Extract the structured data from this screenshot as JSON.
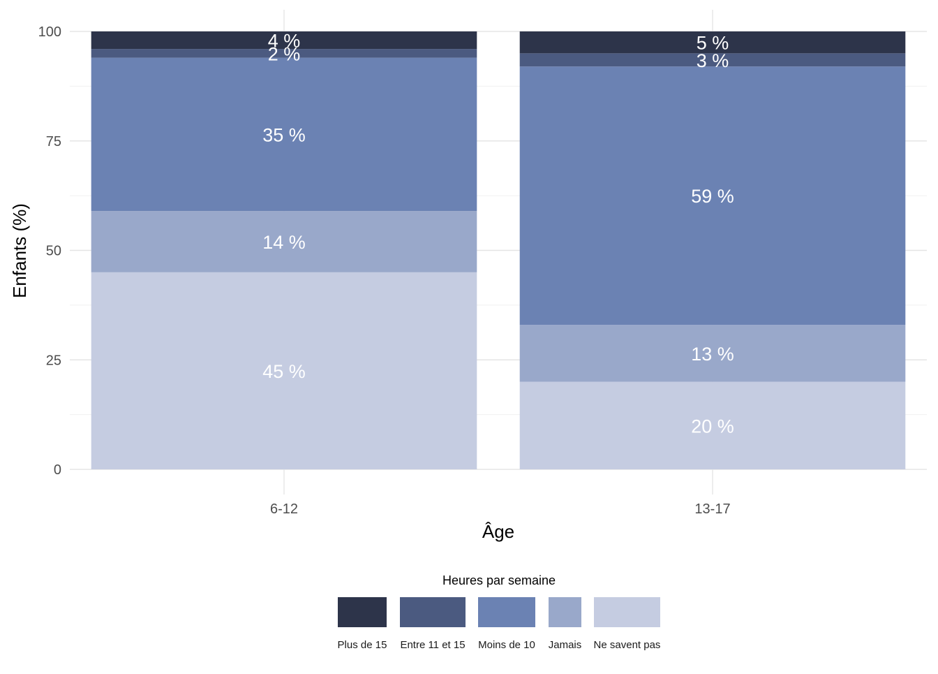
{
  "chart_data": {
    "type": "bar",
    "stacked": true,
    "xlabel": "Âge",
    "ylabel": "Enfants (%)",
    "ylim": [
      0,
      100
    ],
    "yticks": [
      0,
      25,
      50,
      75,
      100
    ],
    "categories": [
      "6-12",
      "13-17"
    ],
    "legend_title": "Heures par semaine",
    "legend_position": "bottom",
    "grid": true,
    "series": [
      {
        "name": "Ne savent pas",
        "color": "#c5cce1",
        "values": [
          45,
          20
        ],
        "labels": [
          "45 %",
          "20 %"
        ]
      },
      {
        "name": "Jamais",
        "color": "#99a8ca",
        "values": [
          14,
          13
        ],
        "labels": [
          "14 %",
          "13 %"
        ]
      },
      {
        "name": "Moins de 10",
        "color": "#6b82b3",
        "values": [
          35,
          59
        ],
        "labels": [
          "35 %",
          "59 %"
        ]
      },
      {
        "name": "Entre 11 et 15",
        "color": "#4b5a80",
        "values": [
          2,
          3
        ],
        "labels": [
          "2 %",
          "3 %"
        ]
      },
      {
        "name": "Plus de 15",
        "color": "#2d344a",
        "values": [
          4,
          5
        ],
        "labels": [
          "4 %",
          "5 %"
        ]
      }
    ],
    "legend_order": [
      "Plus de 15",
      "Entre 11 et 15",
      "Moins de 10",
      "Jamais",
      "Ne savent pas"
    ]
  }
}
